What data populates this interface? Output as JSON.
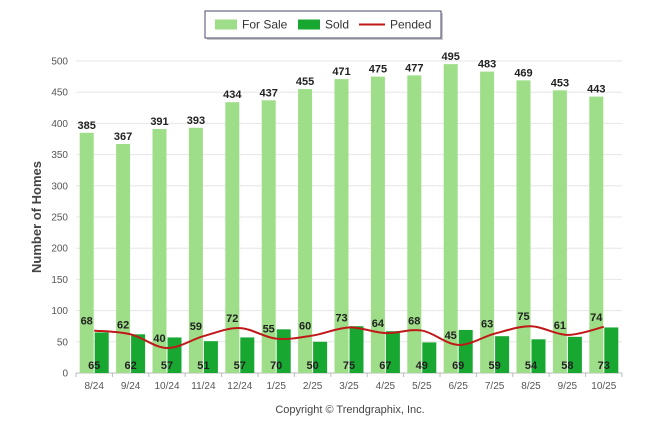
{
  "chart_data": {
    "type": "bar",
    "categories": [
      "8/24",
      "9/24",
      "10/24",
      "11/24",
      "12/24",
      "1/25",
      "2/25",
      "3/25",
      "4/25",
      "5/25",
      "6/25",
      "7/25",
      "8/25",
      "9/25",
      "10/25"
    ],
    "series": [
      {
        "name": "For Sale",
        "type": "bar",
        "color": "#9ede88",
        "values": [
          385,
          367,
          391,
          393,
          434,
          437,
          455,
          471,
          475,
          477,
          495,
          483,
          469,
          453,
          443
        ]
      },
      {
        "name": "Sold",
        "type": "bar",
        "color": "#18a832",
        "values": [
          65,
          62,
          57,
          51,
          57,
          70,
          50,
          75,
          67,
          49,
          69,
          59,
          54,
          58,
          73
        ]
      },
      {
        "name": "Pended",
        "type": "line",
        "color": "#c01818",
        "values": [
          68,
          62,
          40,
          59,
          72,
          55,
          60,
          73,
          64,
          68,
          45,
          63,
          75,
          61,
          74
        ]
      }
    ],
    "ylabel": "Number of Homes",
    "ylim": [
      0,
      500
    ],
    "yticks": [
      0,
      50,
      100,
      150,
      200,
      250,
      300,
      350,
      400,
      450,
      500
    ],
    "grid": true,
    "legend": "top-center",
    "credit": "Copyright © Trendgraphix, Inc."
  }
}
